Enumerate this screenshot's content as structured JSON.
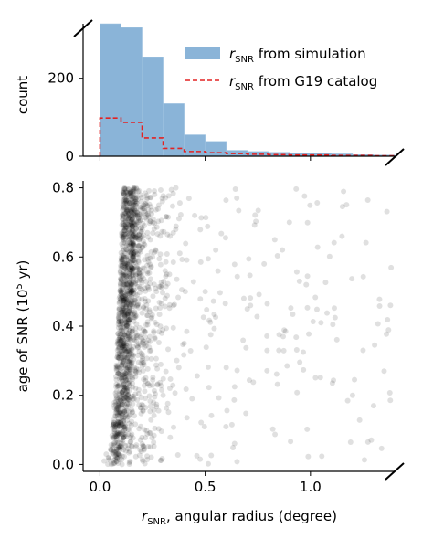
{
  "chart_data": [
    {
      "type": "bar",
      "role": "histogram",
      "ylabel": "count",
      "ylim": [
        0,
        340
      ],
      "xlim": [
        -0.08,
        1.4
      ],
      "yticks": [
        0,
        200
      ],
      "xticks": [
        0.0,
        0.5,
        1.0
      ],
      "show_xticklabels": false,
      "grid": false,
      "legend_position": "top-right",
      "bin_edges": [
        0.0,
        0.1,
        0.2,
        0.3,
        0.4,
        0.5,
        0.6,
        0.7,
        0.8,
        0.9,
        1.0,
        1.1,
        1.2,
        1.3,
        1.4
      ],
      "series": [
        {
          "name": "r_SNR from simulation",
          "style": "filled-bars",
          "color": "#8ab4d8",
          "values": [
            340,
            330,
            255,
            135,
            55,
            38,
            15,
            12,
            10,
            8,
            8,
            6,
            4,
            3
          ]
        },
        {
          "name": "r_SNR from G19 catalog",
          "style": "dashed-step",
          "color": "#e32222",
          "values": [
            98,
            87,
            47,
            20,
            12,
            9,
            7,
            5,
            4,
            3,
            3,
            2,
            2,
            1
          ]
        }
      ]
    },
    {
      "type": "scatter",
      "xlabel": "r_SNR, angular radius (degree)",
      "ylabel": "age of SNR (10^5 yr)",
      "xlim": [
        -0.08,
        1.4
      ],
      "ylim": [
        -0.02,
        0.82
      ],
      "xticks": [
        0.0,
        0.5,
        1.0
      ],
      "xticklabels": [
        "0.0",
        "0.5",
        "1.0"
      ],
      "yticks": [
        0.0,
        0.2,
        0.4,
        0.6,
        0.8
      ],
      "yticklabels": [
        "0.0",
        "0.2",
        "0.4",
        "0.6",
        "0.8"
      ],
      "grid": false,
      "point_color": "#000000",
      "point_opacity": 0.12,
      "points": [
        [
          0.02,
          0.01
        ],
        [
          0.04,
          0.02
        ],
        [
          0.03,
          0.03
        ],
        [
          0.06,
          0.05
        ],
        [
          0.08,
          0.08
        ],
        [
          0.07,
          0.1
        ],
        [
          0.09,
          0.12
        ],
        [
          0.1,
          0.15
        ],
        [
          0.09,
          0.17
        ],
        [
          0.11,
          0.19
        ],
        [
          0.12,
          0.22
        ],
        [
          0.1,
          0.25
        ],
        [
          0.13,
          0.28
        ],
        [
          0.11,
          0.31
        ],
        [
          0.12,
          0.34
        ],
        [
          0.14,
          0.37
        ],
        [
          0.13,
          0.4
        ],
        [
          0.12,
          0.43
        ],
        [
          0.14,
          0.46
        ],
        [
          0.13,
          0.49
        ],
        [
          0.15,
          0.52
        ],
        [
          0.14,
          0.55
        ],
        [
          0.13,
          0.58
        ],
        [
          0.16,
          0.61
        ],
        [
          0.15,
          0.64
        ],
        [
          0.14,
          0.67
        ],
        [
          0.16,
          0.7
        ],
        [
          0.15,
          0.73
        ],
        [
          0.17,
          0.76
        ],
        [
          0.16,
          0.79
        ],
        [
          0.2,
          0.3
        ],
        [
          0.22,
          0.45
        ],
        [
          0.25,
          0.6
        ],
        [
          0.28,
          0.75
        ],
        [
          0.3,
          0.2
        ],
        [
          0.33,
          0.55
        ],
        [
          0.36,
          0.68
        ],
        [
          0.4,
          0.35
        ],
        [
          0.45,
          0.72
        ],
        [
          0.5,
          0.5
        ],
        [
          0.55,
          0.62
        ],
        [
          0.6,
          0.28
        ],
        [
          0.65,
          0.77
        ],
        [
          0.7,
          0.45
        ],
        [
          0.78,
          0.58
        ],
        [
          0.85,
          0.33
        ],
        [
          0.9,
          0.7
        ],
        [
          0.98,
          0.52
        ],
        [
          1.05,
          0.41
        ],
        [
          1.15,
          0.66
        ],
        [
          1.2,
          0.2
        ],
        [
          1.25,
          0.33
        ],
        [
          1.3,
          0.17
        ],
        [
          1.35,
          0.27
        ],
        [
          1.38,
          0.46
        ]
      ],
      "point_cloud_note": ""
    }
  ],
  "labels": {
    "legend_sim_r": "r",
    "legend_sim_sub": "SNR",
    "legend_sim_rest": " from simulation",
    "legend_g19_r": "r",
    "legend_g19_sub": "SNR",
    "legend_g19_rest": " from G19 catalog",
    "hist_ylabel": "count",
    "scatter_ylabel_main": "age of SNR (10",
    "scatter_ylabel_sup": "5",
    "scatter_ylabel_end": " yr)",
    "xlabel_r": "r",
    "xlabel_sub": "SNR",
    "xlabel_rest": ", angular radius (degree)"
  }
}
